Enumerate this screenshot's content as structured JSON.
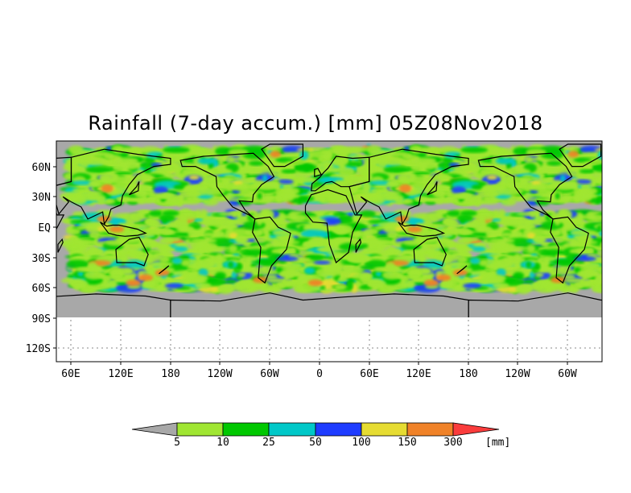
{
  "title": "Rainfall (7-day accum.) [mm] 05Z08Nov2018",
  "map": {
    "y_ticks": [
      "60N",
      "30N",
      "EQ",
      "30S",
      "60S",
      "90S",
      "120S"
    ],
    "x_ticks": [
      "60E",
      "120E",
      "180",
      "120W",
      "60W",
      "0",
      "60E",
      "120E",
      "180",
      "120W",
      "60W"
    ],
    "land_color": "#000000",
    "ocean_dry_color": "#a8a8a8"
  },
  "legend": {
    "unit": "[mm]",
    "labels": [
      "5",
      "10",
      "25",
      "50",
      "100",
      "150",
      "300"
    ],
    "colors": [
      "#a8a8a8",
      "#a0e632",
      "#00c800",
      "#00c8c8",
      "#1e3cff",
      "#e6dc32",
      "#f08228",
      "#fa3c3c"
    ]
  }
}
